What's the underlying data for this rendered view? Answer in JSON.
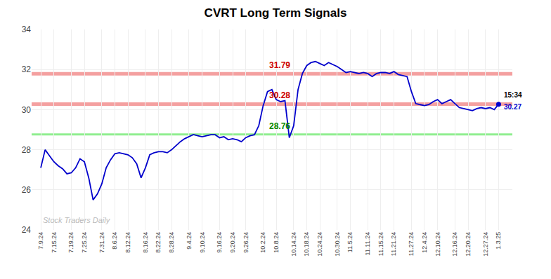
{
  "chart_data": {
    "type": "line",
    "title": "CVRT Long Term Signals",
    "color": "#0000cc",
    "categories": [
      "7.9.24",
      null,
      null,
      "7.15.24",
      null,
      null,
      null,
      "7.19.24",
      null,
      null,
      "7.25.24",
      null,
      null,
      null,
      "7.31.24",
      null,
      null,
      "8.6.24",
      null,
      null,
      "8.12.24",
      null,
      null,
      null,
      "8.16.24",
      null,
      null,
      "8.22.24",
      null,
      null,
      "8.28.24",
      null,
      null,
      null,
      "9.4.24",
      null,
      null,
      "9.10.24",
      null,
      null,
      null,
      "9.16.24",
      null,
      null,
      "9.20.24",
      null,
      null,
      "9.26.24",
      null,
      null,
      null,
      "10.2.24",
      null,
      null,
      "10.8.24",
      null,
      null,
      null,
      "10.14.24",
      null,
      null,
      "10.18.24",
      null,
      null,
      "10.24.24",
      null,
      null,
      null,
      "10.30.24",
      null,
      null,
      "11.5.24",
      null,
      null,
      null,
      "11.11.24",
      null,
      null,
      "11.15.24",
      null,
      null,
      "11.21.24",
      null,
      null,
      null,
      "11.27.24",
      null,
      null,
      "12.4.24",
      null,
      null,
      "12.10.24",
      null,
      null,
      null,
      "12.16.24",
      null,
      null,
      "12.20.24",
      null,
      null,
      null,
      "12.27.24",
      null,
      null,
      "1.3.25"
    ],
    "values": [
      27.1,
      28.0,
      27.7,
      27.4,
      27.2,
      27.05,
      26.8,
      26.85,
      27.1,
      27.55,
      27.4,
      26.6,
      25.5,
      25.8,
      26.3,
      27.1,
      27.5,
      27.8,
      27.85,
      27.8,
      27.75,
      27.6,
      27.3,
      26.6,
      27.1,
      27.75,
      27.85,
      27.9,
      27.9,
      27.85,
      28.0,
      28.2,
      28.4,
      28.55,
      28.65,
      28.76,
      28.7,
      28.65,
      28.7,
      28.75,
      28.75,
      28.6,
      28.65,
      28.5,
      28.55,
      28.5,
      28.4,
      28.6,
      28.7,
      28.75,
      29.2,
      30.2,
      30.9,
      31.0,
      30.5,
      30.4,
      30.45,
      28.6,
      29.2,
      31.0,
      31.8,
      32.2,
      32.35,
      32.4,
      32.3,
      32.2,
      32.35,
      32.25,
      32.15,
      32.0,
      31.85,
      31.9,
      31.85,
      31.8,
      31.85,
      31.8,
      31.65,
      31.8,
      31.85,
      31.85,
      31.8,
      31.9,
      31.75,
      31.7,
      31.65,
      30.9,
      30.3,
      30.25,
      30.2,
      30.25,
      30.4,
      30.5,
      30.3,
      30.4,
      30.5,
      30.3,
      30.1,
      30.05,
      30.0,
      29.95,
      30.05,
      30.1,
      30.05,
      30.1,
      30.0,
      30.27
    ],
    "hlines": [
      {
        "value": 31.79,
        "label": "31.79",
        "color": "#f4a0a0",
        "label_color": "#cc0000"
      },
      {
        "value": 30.28,
        "label": "30.28",
        "color": "#f4a0a0",
        "label_color": "#cc0000"
      },
      {
        "value": 28.76,
        "label": "28.76",
        "color": "#90ee90",
        "label_color": "#008800"
      }
    ],
    "last_point": {
      "label": "15:34",
      "value": 30.27,
      "value_label": "30.27",
      "color": "#0000cc"
    },
    "watermark": {
      "text": "Stock Traders Daily",
      "color": "#bbbbbb"
    },
    "ylim": [
      24,
      34
    ],
    "yticks": [
      24,
      26,
      28,
      30,
      32,
      34
    ],
    "grid": true
  }
}
